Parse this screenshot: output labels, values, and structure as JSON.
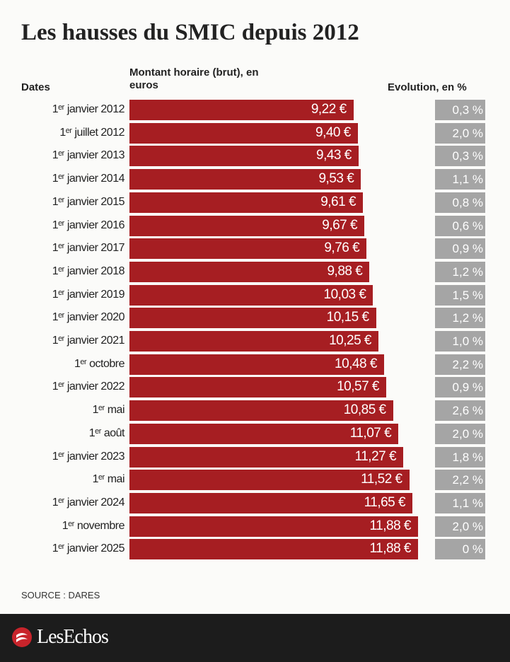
{
  "chart_data": {
    "type": "bar",
    "orientation": "horizontal",
    "title": "Les hausses du SMIC depuis 2012",
    "category_header": "Dates",
    "categories": [
      "1ᵉʳ janvier 2012",
      "1ᵉʳ juillet 2012",
      "1ᵉʳ janvier 2013",
      "1ᵉʳ janvier 2014",
      "1ᵉʳ janvier 2015",
      "1ᵉʳ janvier 2016",
      "1ᵉʳ janvier 2017",
      "1ᵉʳ janvier 2018",
      "1ᵉʳ janvier 2019",
      "1ᵉʳ janvier 2020",
      "1ᵉʳ janvier 2021",
      "1ᵉʳ octobre",
      "1ᵉʳ janvier 2022",
      "1ᵉʳ mai",
      "1ᵉʳ août",
      "1ᵉʳ janvier 2023",
      "1ᵉʳ mai",
      "1ᵉʳ janvier 2024",
      "1ᵉʳ novembre",
      "1ᵉʳ janvier 2025"
    ],
    "series": [
      {
        "name": "Montant horaire (brut), en euros",
        "color": "#a61e22",
        "values": [
          9.22,
          9.4,
          9.43,
          9.53,
          9.61,
          9.67,
          9.76,
          9.88,
          10.03,
          10.15,
          10.25,
          10.48,
          10.57,
          10.85,
          11.07,
          11.27,
          11.52,
          11.65,
          11.88,
          11.88
        ],
        "value_labels": [
          "9,22 €",
          "9,40 €",
          "9,43 €",
          "9,53 €",
          "9,61 €",
          "9,67 €",
          "9,76 €",
          "9,88 €",
          "10,03 €",
          "10,15 €",
          "10,25 €",
          "10,48 €",
          "10,57 €",
          "10,85 €",
          "11,07 €",
          "11,27 €",
          "11,52 €",
          "11,65 €",
          "11,88 €",
          "11,88 €"
        ]
      },
      {
        "name": "Evolution, en %",
        "color": "#a5a5a5",
        "values": [
          0.3,
          2.0,
          0.3,
          1.1,
          0.8,
          0.6,
          0.9,
          1.2,
          1.5,
          1.2,
          1.0,
          2.2,
          0.9,
          2.6,
          2.0,
          1.8,
          2.2,
          1.1,
          2.0,
          0
        ],
        "value_labels": [
          "0,3 %",
          "2,0 %",
          "0,3 %",
          "1,1 %",
          "0,8 %",
          "0,6 %",
          "0,9 %",
          "1,2 %",
          "1,5 %",
          "1,2 %",
          "1,0 %",
          "2,2 %",
          "0,9 %",
          "2,6 %",
          "2,0 %",
          "1,8 %",
          "2,2 %",
          "1,1 %",
          "2,0 %",
          "0 %"
        ]
      }
    ],
    "source": "SOURCE : DARES",
    "brand": "LesEchos"
  }
}
